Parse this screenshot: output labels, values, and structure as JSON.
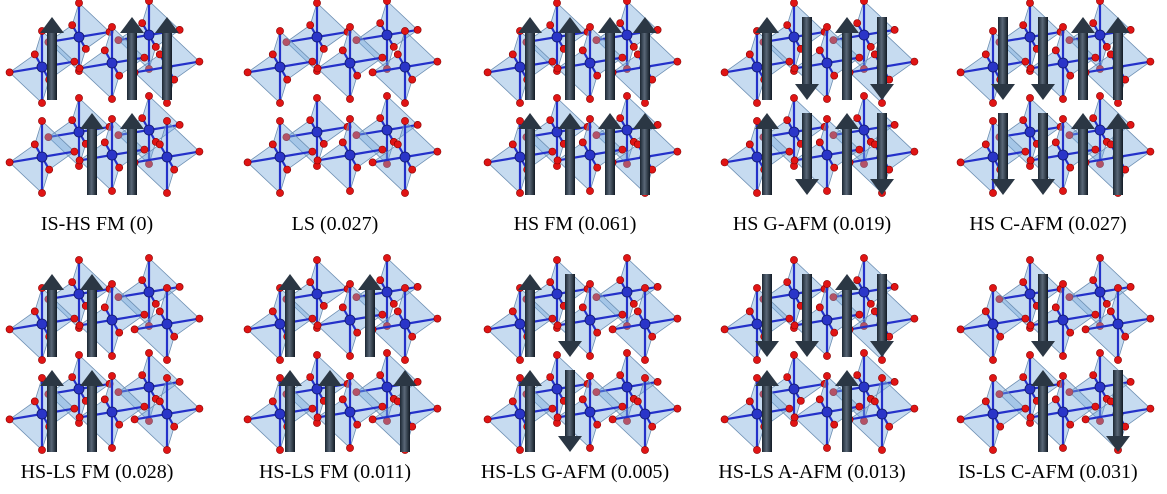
{
  "panels": [
    {
      "label": "IS-HS FM (0)"
    },
    {
      "label": "LS (0.027)"
    },
    {
      "label": "HS FM (0.061)"
    },
    {
      "label": "HS G-AFM (0.019)"
    },
    {
      "label": "HS C-AFM (0.027)"
    },
    {
      "label": "HS-LS FM (0.028)"
    },
    {
      "label": "HS-LS FM (0.011)"
    },
    {
      "label": "HS-LS G-AFM (0.005)"
    },
    {
      "label": "HS-LS A-AFM (0.013)"
    },
    {
      "label": "IS-LS C-AFM (0.031)"
    }
  ]
}
